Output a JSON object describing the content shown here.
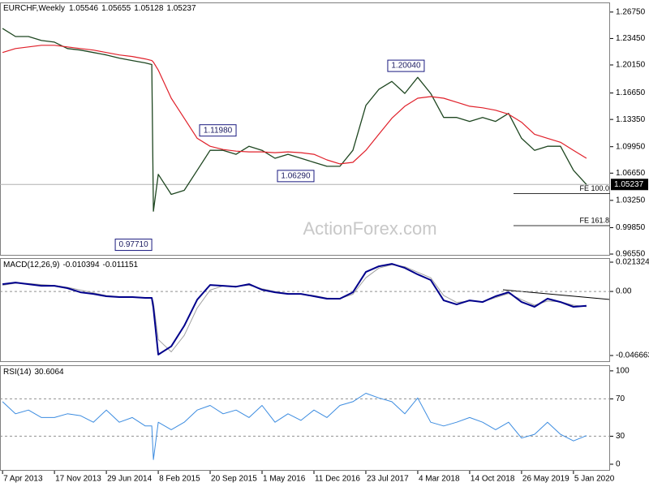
{
  "chart_data": [
    {
      "type": "price",
      "title": "EURCHF,Weekly",
      "ohlc_values": [
        1.05546,
        1.05655,
        1.05128,
        1.05237
      ],
      "watermark": "ActionForex.com",
      "x": [
        "2013-04-07",
        "2013-06-02",
        "2013-07-28",
        "2013-09-22",
        "2013-11-17",
        "2014-01-12",
        "2014-03-09",
        "2014-05-04",
        "2014-06-29",
        "2014-08-24",
        "2014-10-19",
        "2014-12-14",
        "2015-01-11",
        "2015-01-18",
        "2015-02-08",
        "2015-04-05",
        "2015-05-31",
        "2015-07-26",
        "2015-09-20",
        "2015-11-15",
        "2016-01-10",
        "2016-03-06",
        "2016-05-01",
        "2016-06-26",
        "2016-08-21",
        "2016-10-16",
        "2016-12-11",
        "2017-02-05",
        "2017-04-02",
        "2017-05-28",
        "2017-07-23",
        "2017-09-17",
        "2017-11-12",
        "2018-01-07",
        "2018-03-04",
        "2018-04-29",
        "2018-06-24",
        "2018-08-19",
        "2018-10-14",
        "2018-12-09",
        "2019-02-03",
        "2019-03-31",
        "2019-05-26",
        "2019-07-21",
        "2019-09-15",
        "2019-11-10",
        "2020-01-05",
        "2020-03-01"
      ],
      "series": [
        {
          "color": "#1e4620",
          "values": [
            1.247,
            1.237,
            1.237,
            1.232,
            1.23,
            1.222,
            1.22,
            1.217,
            1.214,
            1.21,
            1.207,
            1.204,
            1.202,
            1.019,
            1.065,
            1.04,
            1.045,
            1.07,
            1.095,
            1.095,
            1.09,
            1.1,
            1.095,
            1.085,
            1.09,
            1.085,
            1.08,
            1.075,
            1.075,
            1.095,
            1.151,
            1.171,
            1.181,
            1.166,
            1.186,
            1.166,
            1.136,
            1.136,
            1.131,
            1.136,
            1.131,
            1.141,
            1.11,
            1.095,
            1.1,
            1.1,
            1.07,
            1.05237
          ]
        },
        {
          "color": "#e0202a",
          "values": [
            1.217,
            1.222,
            1.224,
            1.226,
            1.226,
            1.224,
            1.222,
            1.22,
            1.217,
            1.214,
            1.212,
            1.209,
            1.207,
            1.205,
            1.195,
            1.16,
            1.135,
            1.11,
            1.1,
            1.096,
            1.094,
            1.093,
            1.093,
            1.092,
            1.093,
            1.092,
            1.09,
            1.083,
            1.078,
            1.08,
            1.095,
            1.115,
            1.135,
            1.15,
            1.16,
            1.162,
            1.16,
            1.155,
            1.15,
            1.148,
            1.145,
            1.14,
            1.13,
            1.115,
            1.11,
            1.105,
            1.095,
            1.085
          ]
        }
      ],
      "xlim": [
        "2013-03-27",
        "2020-06-11"
      ],
      "xticks": [
        {
          "value": "2013-04-07",
          "label": "7 Apr 2013"
        },
        {
          "value": "2013-11-17",
          "label": "17 Nov 2013"
        },
        {
          "value": "2014-06-29",
          "label": "29 Jun 2014"
        },
        {
          "value": "2015-02-08",
          "label": "8 Feb 2015"
        },
        {
          "value": "2015-09-20",
          "label": "20 Sep 2015"
        },
        {
          "value": "2016-05-01",
          "label": "1 May 2016"
        },
        {
          "value": "2016-12-11",
          "label": "11 Dec 2016"
        },
        {
          "value": "2017-07-23",
          "label": "23 Jul 2017"
        },
        {
          "value": "2018-03-04",
          "label": "4 Mar 2018"
        },
        {
          "value": "2018-10-14",
          "label": "14 Oct 2018"
        },
        {
          "value": "2019-05-26",
          "label": "26 May 2019"
        },
        {
          "value": "2020-01-05",
          "label": "5 Jan 2020"
        }
      ],
      "ylim": [
        0.9635,
        1.2795
      ],
      "yticks": [
        {
          "value": 1.2675,
          "label": "1.26750"
        },
        {
          "value": 1.2345,
          "label": "1.23450"
        },
        {
          "value": 1.2015,
          "label": "1.20150"
        },
        {
          "value": 1.1665,
          "label": "1.16650"
        },
        {
          "value": 1.1335,
          "label": "1.13350"
        },
        {
          "value": 1.0995,
          "label": "1.09950"
        },
        {
          "value": 1.0665,
          "label": "1.06650"
        },
        {
          "value": 1.0325,
          "label": "1.03250"
        },
        {
          "value": 0.9985,
          "label": "0.99850"
        },
        {
          "value": 0.9655,
          "label": "0.96550"
        }
      ],
      "annotations": [
        {
          "x": "2015-01-18",
          "value": 0.9771,
          "label": "0.97710"
        },
        {
          "x": "2016-01-17",
          "value": 1.1198,
          "label": "1.11980"
        },
        {
          "x": "2016-12-18",
          "value": 1.0629,
          "label": "1.06290"
        },
        {
          "x": "2018-04-08",
          "value": 1.2004,
          "label": "1.20040"
        }
      ],
      "levels": [
        {
          "value": 1.041,
          "label": "FE 100.0"
        },
        {
          "value": 1.001,
          "label": "FE 161.8"
        }
      ]
    },
    {
      "type": "macd",
      "title": "MACD(12,26,9)",
      "series": [
        {
          "color": "#00008b",
          "values": [
            0.0053,
            0.0065,
            0.0053,
            0.0041,
            0.0041,
            0.0024,
            -0.0006,
            -0.0018,
            -0.0035,
            -0.0041,
            -0.0041,
            -0.0047,
            -0.0047,
            -0.012,
            -0.046,
            -0.04,
            -0.025,
            -0.006,
            0.0047,
            0.0041,
            0.0035,
            0.0053,
            0.0012,
            -0.0006,
            -0.0018,
            -0.0018,
            -0.0035,
            -0.0053,
            -0.0053,
            -0.0006,
            0.0142,
            0.0183,
            0.0201,
            0.0171,
            0.0124,
            0.0083,
            -0.0065,
            -0.0095,
            -0.0065,
            -0.0077,
            -0.0035,
            -0.0006,
            -0.0077,
            -0.0112,
            -0.0053,
            -0.0077,
            -0.0112,
            -0.010394
          ]
        },
        {
          "color": "#a0a0a0",
          "values": [
            0.0045,
            0.006,
            0.0058,
            0.005,
            0.0043,
            0.003,
            0.001,
            -0.001,
            -0.003,
            -0.0038,
            -0.004,
            -0.0045,
            -0.0046,
            -0.008,
            -0.035,
            -0.044,
            -0.032,
            -0.012,
            0.001,
            0.004,
            0.0038,
            0.0045,
            0.002,
            0.0,
            -0.0015,
            -0.0018,
            -0.003,
            -0.0048,
            -0.0052,
            -0.002,
            0.01,
            0.017,
            0.0195,
            0.018,
            0.014,
            0.01,
            -0.003,
            -0.008,
            -0.007,
            -0.0075,
            -0.0045,
            -0.0015,
            -0.006,
            -0.01,
            -0.007,
            -0.0075,
            -0.01,
            -0.011151
          ]
        }
      ],
      "ylim": [
        -0.05139,
        0.02428
      ],
      "yticks": [
        0.021324,
        {
          "value": 0,
          "label": "0.00"
        },
        -0.046663
      ],
      "guide_lines": [
        0
      ]
    },
    {
      "type": "rsi",
      "title": "RSI(14)",
      "series": [
        {
          "color": "#3c8ce0",
          "values": [
            67,
            54,
            58,
            50,
            50,
            54,
            52,
            45,
            58,
            45,
            50,
            41,
            41,
            5,
            45,
            37,
            45,
            58,
            63,
            54,
            58,
            50,
            63,
            45,
            54,
            47,
            58,
            50,
            63,
            67,
            76,
            71,
            67,
            54,
            71,
            45,
            41,
            45,
            50,
            45,
            37,
            45,
            28,
            32,
            45,
            32,
            25,
            30.6064
          ]
        }
      ],
      "ylim": [
        -7,
        106
      ],
      "yticks": [
        100,
        70,
        30,
        0
      ],
      "guide_lines": [
        70,
        30
      ]
    }
  ]
}
